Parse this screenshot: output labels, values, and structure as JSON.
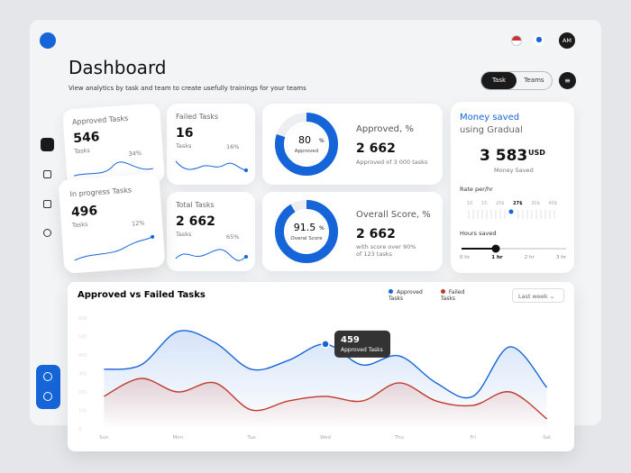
{
  "header": {
    "title": "Dashboard",
    "subtitle": "View analytics by task and team to create usefully trainings for your teams",
    "tabs": [
      "Task",
      "Teams"
    ],
    "avatar": "AM"
  },
  "cards": {
    "approved": {
      "label": "Approved Tasks",
      "value": 546,
      "unit": "Tasks",
      "change": "34%"
    },
    "failed": {
      "label": "Failed Tasks",
      "value": 16,
      "unit": "Tasks",
      "change": "16%"
    },
    "in_progress": {
      "label": "In progress Tasks",
      "value": 496,
      "unit": "Tasks",
      "change": "12%"
    },
    "total": {
      "label": "Total Tasks",
      "value": "2 662",
      "unit": "Tasks",
      "change": "65%"
    }
  },
  "donuts": [
    {
      "value": 80,
      "unit": "%",
      "caption": "Approved",
      "title": "Approved, %",
      "total": "2 662",
      "note": [
        "Approved  of 3 000 tasks"
      ]
    },
    {
      "value": 91.5,
      "unit": "%",
      "caption": "Overal Score",
      "title": "Overall Score, %",
      "total": "2 662",
      "note": [
        "with score over 90%",
        "of 123 tasks"
      ]
    }
  ],
  "money": {
    "title": "Money saved",
    "subtitle": "using Gradual",
    "value": "3 583",
    "currency": "USD",
    "caption": "Money Saved",
    "rate_label": "Rate per/hr",
    "rates": [
      "10",
      "15",
      "20$",
      "27$",
      "30$",
      "40$"
    ],
    "hours_label": "Hours saved",
    "hours": [
      "0 hr",
      "1 hr",
      "2 hr",
      "3 hr"
    ]
  },
  "controls": {
    "period": "Last week"
  },
  "chart_data": {
    "type": "line",
    "title": "Approved vs Failed Tasks",
    "x": [
      0,
      0.5,
      1,
      1.5,
      2,
      2.5,
      3,
      3.5,
      4,
      4.5,
      5,
      5.5,
      6
    ],
    "xlim": [
      -0.2,
      6.2
    ],
    "xticks": [
      {
        "value": 0,
        "label": "Sun"
      },
      {
        "value": 1,
        "label": "Mon"
      },
      {
        "value": 2,
        "label": "Tue"
      },
      {
        "value": 3,
        "label": "Wed"
      },
      {
        "value": 4,
        "label": "Thu"
      },
      {
        "value": 5,
        "label": "Fri"
      },
      {
        "value": 6,
        "label": "Sat"
      }
    ],
    "ylim": [
      0,
      600
    ],
    "yticks": [
      0,
      100,
      200,
      300,
      400,
      500,
      600
    ],
    "series": [
      {
        "name": "Approved Tasks",
        "color": "#1565d8",
        "values": [
          322,
          346,
          527,
          468,
          322,
          371,
          459,
          346,
          395,
          249,
          176,
          444,
          224
        ]
      },
      {
        "name": "Failed Tasks",
        "color": "#c0392b",
        "values": [
          176,
          273,
          200,
          249,
          102,
          151,
          176,
          151,
          249,
          151,
          127,
          200,
          54
        ]
      }
    ]
  }
}
